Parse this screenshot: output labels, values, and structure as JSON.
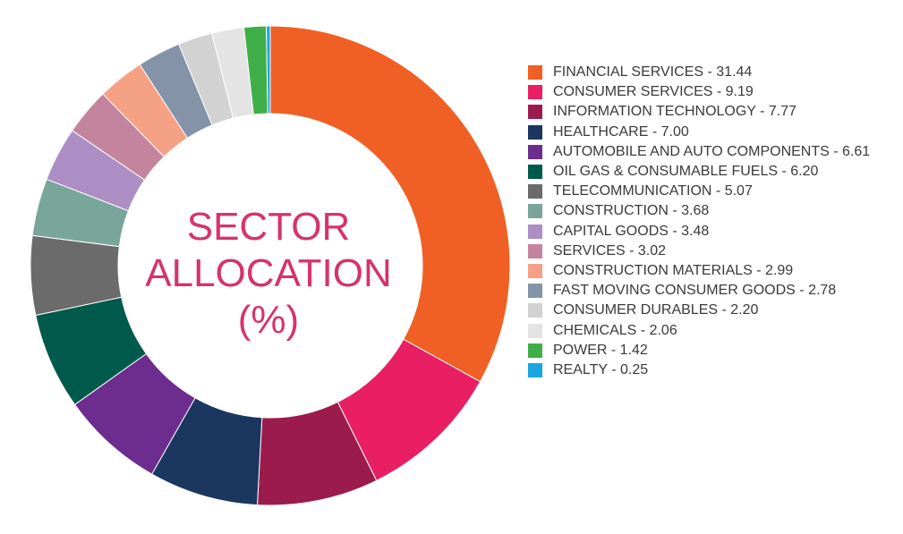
{
  "chart_data": {
    "type": "pie",
    "variant": "donut",
    "title_lines": [
      "SECTOR",
      "ALLOCATION",
      "(%)"
    ],
    "legend_placement": "right",
    "slices": [
      {
        "label": "FINANCIAL SERVICES",
        "value": 31.44,
        "legend_text": "FINANCIAL SERVICES - 31.44",
        "color": "#f05f24"
      },
      {
        "label": "CONSUMER SERVICES",
        "value": 9.19,
        "legend_text": "CONSUMER SERVICES - 9.19",
        "color": "#e91e63"
      },
      {
        "label": "INFORMATION TECHNOLOGY",
        "value": 7.77,
        "legend_text": "INFORMATION TECHNOLOGY - 7.77",
        "color": "#9c1b4d"
      },
      {
        "label": "HEALTHCARE",
        "value": 7.0,
        "legend_text": "HEALTHCARE - 7.00",
        "color": "#1b365f"
      },
      {
        "label": "AUTOMOBILE AND AUTO COMPONENTS",
        "value": 6.61,
        "legend_text": "AUTOMOBILE AND AUTO COMPONENTS - 6.61",
        "color": "#6c2d8f"
      },
      {
        "label": "OIL GAS & CONSUMABLE FUELS",
        "value": 6.2,
        "legend_text": "OIL GAS & CONSUMABLE FUELS - 6.20",
        "color": "#005a4c"
      },
      {
        "label": "TELECOMMUNICATION",
        "value": 5.07,
        "legend_text": "TELECOMMUNICATION - 5.07",
        "color": "#6b6b6b"
      },
      {
        "label": "CONSTRUCTION",
        "value": 3.68,
        "legend_text": "CONSTRUCTION - 3.68",
        "color": "#7aa59b"
      },
      {
        "label": "CAPITAL GOODS",
        "value": 3.48,
        "legend_text": "CAPITAL GOODS - 3.48",
        "color": "#ad8ec4"
      },
      {
        "label": "SERVICES",
        "value": 3.02,
        "legend_text": "SERVICES - 3.02",
        "color": "#c5849d"
      },
      {
        "label": "CONSTRUCTION MATERIALS",
        "value": 2.99,
        "legend_text": "CONSTRUCTION MATERIALS - 2.99",
        "color": "#f5a185"
      },
      {
        "label": "FAST MOVING CONSUMER GOODS",
        "value": 2.78,
        "legend_text": "FAST MOVING CONSUMER GOODS - 2.78",
        "color": "#8593a9"
      },
      {
        "label": "CONSUMER DURABLES",
        "value": 2.2,
        "legend_text": "CONSUMER DURABLES - 2.20",
        "color": "#d2d2d2"
      },
      {
        "label": "CHEMICALS",
        "value": 2.06,
        "legend_text": "CHEMICALS - 2.06",
        "color": "#e4e4e4"
      },
      {
        "label": "POWER",
        "value": 1.42,
        "legend_text": "POWER - 1.42",
        "color": "#3fae49"
      },
      {
        "label": "REALTY",
        "value": 0.25,
        "legend_text": "REALTY - 0.25",
        "color": "#1aa7e0"
      }
    ]
  }
}
